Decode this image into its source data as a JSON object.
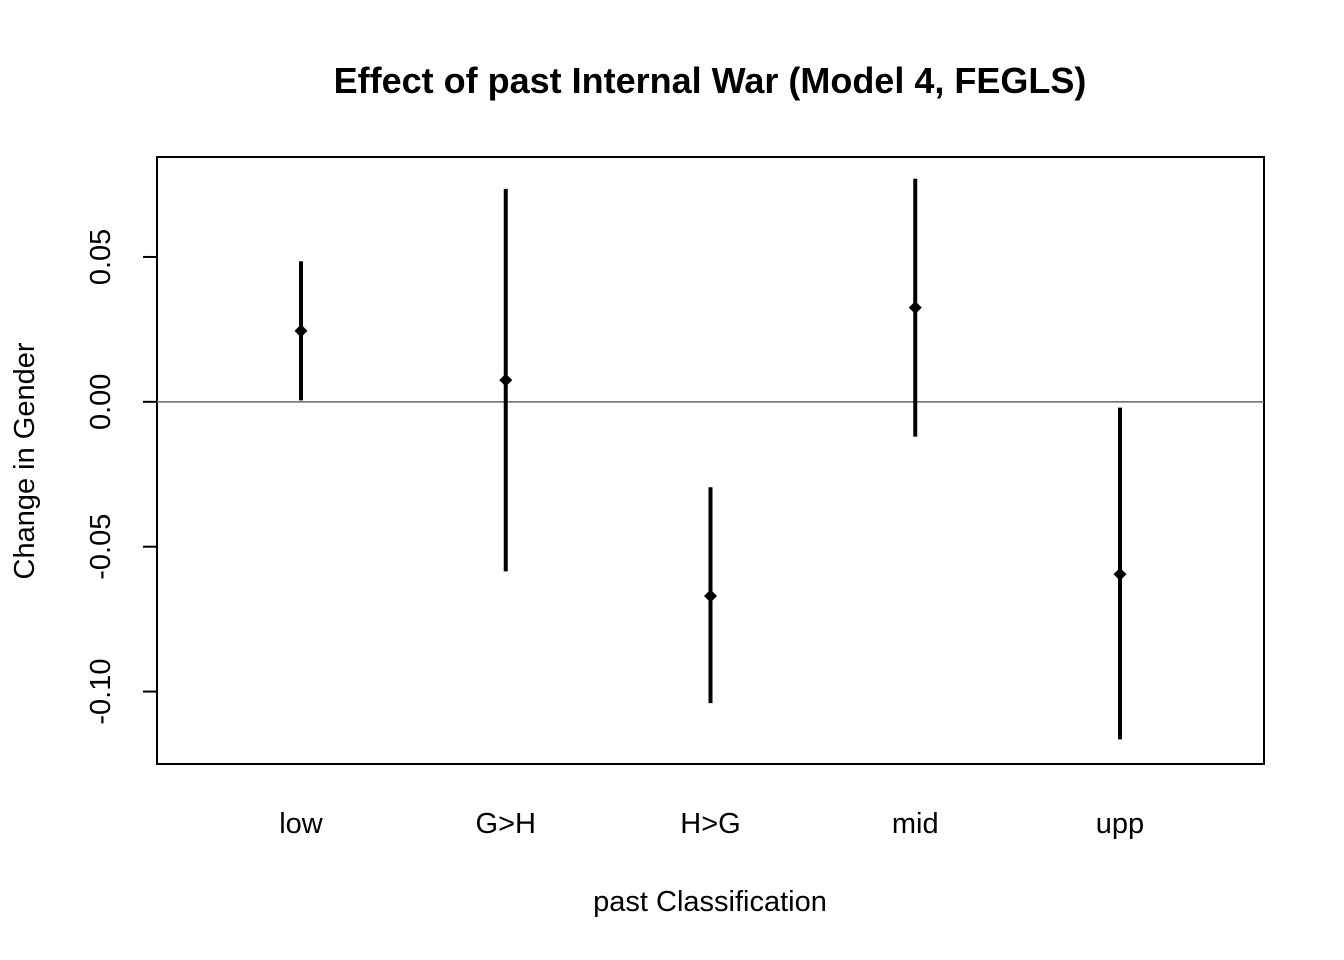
{
  "chart_data": {
    "type": "errorbar",
    "title": "Effect of past Internal War (Model 4, FEGLS)",
    "xlabel": "past Classification",
    "ylabel": "Change in Gender",
    "categories": [
      "low",
      "G>H",
      "H>G",
      "mid",
      "upp"
    ],
    "estimates": [
      0.0245,
      0.0075,
      -0.067,
      0.0325,
      -0.0595
    ],
    "lower": [
      0.0005,
      -0.0585,
      -0.104,
      -0.012,
      -0.1165
    ],
    "upper": [
      0.0485,
      0.0735,
      -0.0295,
      0.077,
      -0.002
    ],
    "ylim": [
      -0.125,
      0.0845
    ],
    "yticks": [
      -0.1,
      -0.05,
      0.0,
      0.05
    ],
    "ytick_labels": [
      "-0.10",
      "-0.05",
      "0.00",
      "0.05"
    ],
    "reference_line": 0,
    "grid": false,
    "legend": "none",
    "colors": {
      "marks": "#000000",
      "reference": "#666666",
      "frame": "#000000"
    }
  }
}
